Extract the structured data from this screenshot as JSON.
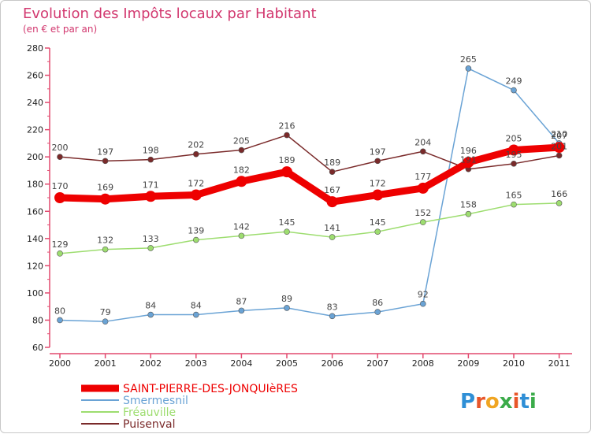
{
  "chart_data": {
    "type": "line",
    "title": "Evolution des Impôts locaux par Habitant",
    "subtitle": "(en € et par an)",
    "xlabel": "",
    "ylabel": "",
    "ylim": [
      60,
      280
    ],
    "ytick_step": 20,
    "grid": false,
    "legend_position": "bottom-left",
    "categories": [
      "2000",
      "2001",
      "2002",
      "2003",
      "2004",
      "2005",
      "2006",
      "2007",
      "2008",
      "2009",
      "2010",
      "2011"
    ],
    "series": [
      {
        "name": "SAINT-PIERRE-DES-JONQUIèRES",
        "values": [
          170,
          169,
          171,
          172,
          182,
          189,
          167,
          172,
          177,
          196,
          205,
          207
        ],
        "color": "#ee0000",
        "highlight": true
      },
      {
        "name": "Smermesnil",
        "values": [
          80,
          79,
          84,
          84,
          87,
          89,
          83,
          86,
          92,
          265,
          249,
          210
        ],
        "color": "#6aa3d5",
        "highlight": false
      },
      {
        "name": "Fréauville",
        "values": [
          129,
          132,
          133,
          139,
          142,
          145,
          141,
          145,
          152,
          158,
          165,
          166
        ],
        "color": "#9ddd6f",
        "highlight": false
      },
      {
        "name": "Puisenval",
        "values": [
          200,
          197,
          198,
          202,
          205,
          216,
          189,
          197,
          204,
          191,
          195,
          201
        ],
        "color": "#7a2a2a",
        "highlight": false
      }
    ]
  },
  "branding": {
    "logo_text": "Proxiti"
  }
}
